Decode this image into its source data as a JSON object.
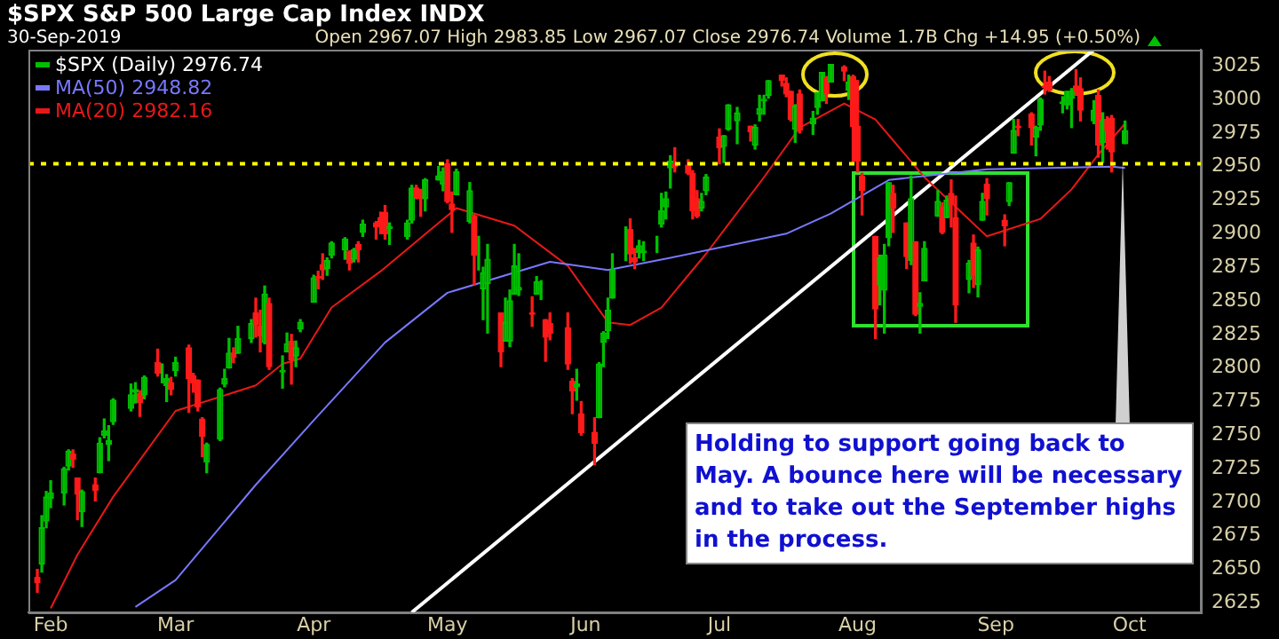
{
  "chart_data": {
    "type": "candlestick",
    "title": "$SPX S&P 500 Large Cap Index INDX",
    "subtitle": "30-Sep-2019",
    "annotations": [
      "Open 2967.07 High 2983.85 Low 2967.07 Close 2976.74 Volume 1.7B Chg +14.95 (+0.50%)",
      "Holding to support going back to May. A bounce here will be necessary and to take out the September highs in the process."
    ],
    "xlim": [
      "2019-01-27",
      "2019-10-17"
    ],
    "xticks": [
      {
        "value": "2019-02-01",
        "label": "Feb"
      },
      {
        "value": "2019-03-01",
        "label": "Mar"
      },
      {
        "value": "2019-04-01",
        "label": "Apr"
      },
      {
        "value": "2019-05-01",
        "label": "May"
      },
      {
        "value": "2019-06-01",
        "label": "Jun"
      },
      {
        "value": "2019-07-01",
        "label": "Jul"
      },
      {
        "value": "2019-08-01",
        "label": "Aug"
      },
      {
        "value": "2019-09-01",
        "label": "Sep"
      },
      {
        "value": "2019-10-01",
        "label": "Oct"
      }
    ],
    "ylim": [
      2618,
      3037
    ],
    "yticks": [
      2625,
      2650,
      2675,
      2700,
      2725,
      2750,
      2775,
      2800,
      2825,
      2850,
      2875,
      2900,
      2925,
      2950,
      2975,
      3000,
      3025
    ],
    "grid": false,
    "legend": "top left",
    "ref_lines": [
      {
        "axis": "y",
        "value": 2952,
        "color": "#ffff00",
        "line_style": "dotted"
      }
    ],
    "series": [
      {
        "name": "$SPX (Daily) 2976.74",
        "color": "#00c000",
        "colors": [
          "#ff1a1a",
          "#00c000",
          "#00c000",
          "#00c000",
          "#00c000",
          "#00c000",
          "#ff1a1a",
          "#ff1a1a",
          "#00c000",
          "#ff1a1a",
          "#00c000",
          "#00c000",
          "#00c000",
          "#00c000",
          "#00c000",
          "#00c000",
          "#ff1a1a",
          "#00c000",
          "#ff1a1a",
          "#00c000",
          "#00c000",
          "#ff1a1a",
          "#00c000",
          "#ff1a1a",
          "#ff1a1a",
          "#ff1a1a",
          "#ff1a1a",
          "#00c000",
          "#00c000",
          "#00c000",
          "#00c000",
          "#ff1a1a",
          "#00c000",
          "#00c000",
          "#ff1a1a",
          "#ff1a1a",
          "#00c000",
          "#ff1a1a",
          "#00c000",
          "#00c000",
          "#ff1a1a",
          "#00c000",
          "#00c000",
          "#00c000",
          "#ff1a1a",
          "#ff1a1a",
          "#00c000",
          "#00c000",
          "#00c000",
          "#ff1a1a",
          "#00c000",
          "#ff1a1a",
          "#00c000",
          "#ff1a1a",
          "#ff1a1a",
          "#ff1a1a",
          "#00c000",
          "#00c000",
          "#00c000",
          "#ff1a1a",
          "#ff1a1a",
          "#00c000",
          "#00c000",
          "#00c000",
          "#ff1a1a",
          "#ff1a1a",
          "#00c000",
          "#00c000",
          "#ff1a1a",
          "#00c000",
          "#00c000",
          "#00c000",
          "#ff1a1a",
          "#00c000",
          "#00c000",
          "#00c000",
          "#00c000",
          "#ff1a1a",
          "#00c000",
          "#00c000",
          "#ff1a1a",
          "#ff1a1a",
          "#ff1a1a",
          "#ff1a1a",
          "#00c000",
          "#ff1a1a",
          "#ff1a1a",
          "#00c000",
          "#00c000",
          "#00c000",
          "#00c000",
          "#00c000",
          "#ff1a1a",
          "#ff1a1a",
          "#00c000",
          "#00c000",
          "#00c000",
          "#00c000",
          "#00c000",
          "#00c000",
          "#ff1a1a",
          "#ff1a1a",
          "#ff1a1a",
          "#ff1a1a",
          "#00c000",
          "#00c000",
          "#ff1a1a",
          "#00c000",
          "#00c000",
          "#00c000",
          "#ff1a1a",
          "#00c000",
          "#00c000",
          "#00c000",
          "#00c000",
          "#ff1a1a",
          "#ff1a1a",
          "#ff1a1a",
          "#00c000",
          "#ff1a1a",
          "#00c000",
          "#00c000",
          "#00c000",
          "#ff1a1a",
          "#00c000",
          "#ff1a1a",
          "#00c000",
          "#ff1a1a",
          "#ff1a1a",
          "#ff1a1a",
          "#ff1a1a",
          "#00c000",
          "#00c000",
          "#00c000",
          "#ff1a1a",
          "#ff1a1a",
          "#00c000",
          "#ff1a1a",
          "#00c000",
          "#00c000",
          "#00c000",
          "#ff1a1a",
          "#00c000",
          "#ff1a1a",
          "#ff1a1a",
          "#00c000",
          "#ff1a1a",
          "#00c000",
          "#00c000",
          "#ff1a1a",
          "#ff1a1a",
          "#00c000",
          "#00c000",
          "#ff1a1a",
          "#ff1a1a",
          "#00c000",
          "#00c000",
          "#ff1a1a",
          "#ff1a1a",
          "#00c000",
          "#00c000",
          "#00c000",
          "#ff1a1a",
          "#ff1a1a",
          "#00c000",
          "#ff1a1a",
          "#00c000",
          "#ff1a1a",
          "#ff1a1a",
          "#00c000"
        ],
        "x": [
          "2019-01-29",
          "2019-01-30",
          "2019-01-31",
          "2019-02-01",
          "2019-02-04",
          "2019-02-05",
          "2019-02-06",
          "2019-02-07",
          "2019-02-08",
          "2019-02-11",
          "2019-02-12",
          "2019-02-13",
          "2019-02-14",
          "2019-02-15",
          "2019-02-19",
          "2019-02-20",
          "2019-02-21",
          "2019-02-22",
          "2019-02-25",
          "2019-02-26",
          "2019-02-27",
          "2019-02-28",
          "2019-03-01",
          "2019-03-04",
          "2019-03-05",
          "2019-03-06",
          "2019-03-07",
          "2019-03-08",
          "2019-03-11",
          "2019-03-12",
          "2019-03-13",
          "2019-03-14",
          "2019-03-15",
          "2019-03-18",
          "2019-03-19",
          "2019-03-20",
          "2019-03-21",
          "2019-03-22",
          "2019-03-25",
          "2019-03-26",
          "2019-03-27",
          "2019-03-28",
          "2019-03-29",
          "2019-04-01",
          "2019-04-02",
          "2019-04-03",
          "2019-04-04",
          "2019-04-05",
          "2019-04-08",
          "2019-04-09",
          "2019-04-10",
          "2019-04-11",
          "2019-04-12",
          "2019-04-15",
          "2019-04-16",
          "2019-04-17",
          "2019-04-18",
          "2019-04-22",
          "2019-04-23",
          "2019-04-24",
          "2019-04-25",
          "2019-04-26",
          "2019-04-29",
          "2019-04-30",
          "2019-05-01",
          "2019-05-02",
          "2019-05-03",
          "2019-05-06",
          "2019-05-07",
          "2019-05-08",
          "2019-05-09",
          "2019-05-10",
          "2019-05-13",
          "2019-05-14",
          "2019-05-15",
          "2019-05-16",
          "2019-05-17",
          "2019-05-20",
          "2019-05-21",
          "2019-05-22",
          "2019-05-23",
          "2019-05-24",
          "2019-05-28",
          "2019-05-29",
          "2019-05-30",
          "2019-05-31",
          "2019-06-03",
          "2019-06-04",
          "2019-06-05",
          "2019-06-06",
          "2019-06-07",
          "2019-06-10",
          "2019-06-11",
          "2019-06-12",
          "2019-06-13",
          "2019-06-14",
          "2019-06-17",
          "2019-06-18",
          "2019-06-19",
          "2019-06-20",
          "2019-06-21",
          "2019-06-24",
          "2019-06-25",
          "2019-06-26",
          "2019-06-27",
          "2019-06-28",
          "2019-07-01",
          "2019-07-02",
          "2019-07-03",
          "2019-07-05",
          "2019-07-08",
          "2019-07-09",
          "2019-07-10",
          "2019-07-11",
          "2019-07-12",
          "2019-07-15",
          "2019-07-16",
          "2019-07-17",
          "2019-07-18",
          "2019-07-19",
          "2019-07-22",
          "2019-07-23",
          "2019-07-24",
          "2019-07-25",
          "2019-07-26",
          "2019-07-29",
          "2019-07-30",
          "2019-07-31",
          "2019-08-01",
          "2019-08-02",
          "2019-08-05",
          "2019-08-06",
          "2019-08-07",
          "2019-08-08",
          "2019-08-09",
          "2019-08-12",
          "2019-08-13",
          "2019-08-14",
          "2019-08-15",
          "2019-08-16",
          "2019-08-19",
          "2019-08-20",
          "2019-08-21",
          "2019-08-22",
          "2019-08-23",
          "2019-08-26",
          "2019-08-27",
          "2019-08-28",
          "2019-08-29",
          "2019-08-30",
          "2019-09-03",
          "2019-09-04",
          "2019-09-05",
          "2019-09-06",
          "2019-09-09",
          "2019-09-10",
          "2019-09-11",
          "2019-09-12",
          "2019-09-13",
          "2019-09-16",
          "2019-09-17",
          "2019-09-18",
          "2019-09-19",
          "2019-09-20",
          "2019-09-23",
          "2019-09-24",
          "2019-09-25",
          "2019-09-26",
          "2019-09-27",
          "2019-09-30"
        ],
        "ohlc": [
          [
            2644,
            2650,
            2633,
            2640
          ],
          [
            2654,
            2690,
            2648,
            2681
          ],
          [
            2686,
            2708,
            2681,
            2704
          ],
          [
            2703,
            2716,
            2696,
            2707
          ],
          [
            2707,
            2726,
            2698,
            2725
          ],
          [
            2727,
            2739,
            2724,
            2738
          ],
          [
            2736,
            2739,
            2726,
            2732
          ],
          [
            2718,
            2718,
            2687,
            2706
          ],
          [
            2693,
            2709,
            2682,
            2708
          ],
          [
            2713,
            2718,
            2701,
            2709
          ],
          [
            2722,
            2748,
            2722,
            2744
          ],
          [
            2750,
            2762,
            2748,
            2753
          ],
          [
            2743,
            2757,
            2731,
            2746
          ],
          [
            2760,
            2777,
            2758,
            2776
          ],
          [
            2770,
            2788,
            2768,
            2780
          ],
          [
            2782,
            2789,
            2774,
            2784
          ],
          [
            2781,
            2783,
            2764,
            2774
          ],
          [
            2780,
            2794,
            2777,
            2793
          ],
          [
            2804,
            2814,
            2794,
            2796
          ],
          [
            2793,
            2803,
            2789,
            2793
          ],
          [
            2787,
            2795,
            2775,
            2792
          ],
          [
            2789,
            2793,
            2780,
            2784
          ],
          [
            2798,
            2808,
            2794,
            2804
          ],
          [
            2815,
            2817,
            2767,
            2792
          ],
          [
            2794,
            2796,
            2782,
            2789
          ],
          [
            2791,
            2791,
            2768,
            2771
          ],
          [
            2762,
            2763,
            2734,
            2749
          ],
          [
            2730,
            2744,
            2722,
            2743
          ],
          [
            2747,
            2785,
            2746,
            2784
          ],
          [
            2788,
            2799,
            2786,
            2792
          ],
          [
            2800,
            2822,
            2800,
            2811
          ],
          [
            2811,
            2815,
            2804,
            2808
          ],
          [
            2811,
            2831,
            2811,
            2822
          ],
          [
            2822,
            2836,
            2819,
            2833
          ],
          [
            2841,
            2852,
            2823,
            2832
          ],
          [
            2831,
            2843,
            2812,
            2824
          ],
          [
            2819,
            2861,
            2818,
            2855
          ],
          [
            2848,
            2852,
            2799,
            2801
          ],
          [
            2797,
            2809,
            2785,
            2798
          ],
          [
            2812,
            2826,
            2812,
            2818
          ],
          [
            2820,
            2825,
            2788,
            2806
          ],
          [
            2809,
            2820,
            2801,
            2815
          ],
          [
            2829,
            2836,
            2827,
            2834
          ],
          [
            2849,
            2869,
            2849,
            2867
          ],
          [
            2868,
            2872,
            2859,
            2867
          ],
          [
            2877,
            2885,
            2866,
            2873
          ],
          [
            2874,
            2882,
            2869,
            2880
          ],
          [
            2884,
            2894,
            2882,
            2893
          ],
          [
            2888,
            2897,
            2881,
            2896
          ],
          [
            2887,
            2887,
            2873,
            2878
          ],
          [
            2881,
            2889,
            2879,
            2888
          ],
          [
            2892,
            2894,
            2879,
            2888
          ],
          [
            2901,
            2910,
            2898,
            2907
          ],
          [
            2908,
            2909,
            2896,
            2905
          ],
          [
            2912,
            2916,
            2900,
            2907
          ],
          [
            2916,
            2921,
            2896,
            2900
          ],
          [
            2904,
            2908,
            2892,
            2905
          ],
          [
            2898,
            2910,
            2896,
            2908
          ],
          [
            2910,
            2936,
            2908,
            2934
          ],
          [
            2934,
            2936,
            2926,
            2927
          ],
          [
            2928,
            2933,
            2913,
            2926
          ],
          [
            2926,
            2941,
            2917,
            2940
          ],
          [
            2940,
            2950,
            2940,
            2943
          ],
          [
            2937,
            2949,
            2932,
            2946
          ],
          [
            2952,
            2955,
            2923,
            2924
          ],
          [
            2922,
            2931,
            2901,
            2918
          ],
          [
            2929,
            2948,
            2929,
            2946
          ],
          [
            2909,
            2938,
            2908,
            2932
          ],
          [
            2913,
            2914,
            2862,
            2884
          ],
          [
            2880,
            2898,
            2873,
            2880
          ],
          [
            2859,
            2875,
            2836,
            2871
          ],
          [
            2863,
            2892,
            2826,
            2881
          ],
          [
            2841,
            2841,
            2801,
            2812
          ],
          [
            2820,
            2852,
            2820,
            2834
          ],
          [
            2820,
            2858,
            2816,
            2850
          ],
          [
            2855,
            2892,
            2855,
            2876
          ],
          [
            2858,
            2885,
            2854,
            2860
          ],
          [
            2841,
            2853,
            2831,
            2840
          ],
          [
            2855,
            2868,
            2855,
            2864
          ],
          [
            2856,
            2865,
            2851,
            2856
          ],
          [
            2836,
            2836,
            2805,
            2823
          ],
          [
            2833,
            2841,
            2821,
            2826
          ],
          [
            2830,
            2841,
            2799,
            2803
          ],
          [
            2790,
            2792,
            2766,
            2783
          ],
          [
            2786,
            2799,
            2776,
            2788
          ],
          [
            2766,
            2775,
            2750,
            2752
          ],
          [
            2752,
            2763,
            2728,
            2744
          ],
          [
            2763,
            2804,
            2763,
            2803
          ],
          [
            2819,
            2827,
            2801,
            2826
          ],
          [
            2828,
            2852,
            2822,
            2843
          ],
          [
            2852,
            2885,
            2852,
            2873
          ],
          [
            2886,
            2905,
            2880,
            2886
          ],
          [
            2903,
            2911,
            2878,
            2885
          ],
          [
            2882,
            2889,
            2874,
            2879
          ],
          [
            2886,
            2895,
            2882,
            2891
          ],
          [
            2886,
            2894,
            2880,
            2887
          ],
          [
            2889,
            2898,
            2886,
            2889
          ],
          [
            2907,
            2930,
            2905,
            2917
          ],
          [
            2920,
            2931,
            2911,
            2926
          ],
          [
            2949,
            2958,
            2934,
            2954
          ],
          [
            2952,
            2964,
            2946,
            2950
          ],
          [
            2951,
            2955,
            2944,
            2945
          ],
          [
            2945,
            2947,
            2911,
            2917
          ],
          [
            2926,
            2932,
            2912,
            2913
          ],
          [
            2919,
            2930,
            2917,
            2924
          ],
          [
            2932,
            2944,
            2929,
            2942
          ],
          [
            2972,
            2978,
            2952,
            2964
          ],
          [
            2965,
            2973,
            2953,
            2973
          ],
          [
            2978,
            2996,
            2977,
            2996
          ],
          [
            2984,
            2994,
            2967,
            2990
          ],
          [
            2980,
            2980,
            2969,
            2976
          ],
          [
            2966,
            2981,
            2963,
            2979
          ],
          [
            2989,
            3003,
            2984,
            2993
          ],
          [
            2999,
            3003,
            2989,
            3000
          ],
          [
            3003,
            3014,
            3001,
            3014
          ],
          [
            3018,
            3018,
            3010,
            3014
          ],
          [
            3012,
            3016,
            3002,
            3004
          ],
          [
            3006,
            3006,
            2984,
            2985
          ],
          [
            2978,
            2996,
            2968,
            2995
          ],
          [
            3004,
            3007,
            2975,
            2977
          ],
          [
            2982,
            2991,
            2974,
            2986
          ],
          [
            2994,
            3005,
            2989,
            3005
          ],
          [
            2999,
            3020,
            2999,
            3020
          ],
          [
            3016,
            3017,
            2997,
            3004
          ],
          [
            3013,
            3026,
            3013,
            3026
          ],
          [
            3024,
            3025,
            3014,
            3021
          ],
          [
            3007,
            3018,
            3000,
            3013
          ],
          [
            3017,
            3018,
            2953,
            2980
          ],
          [
            2980,
            3014,
            2946,
            2954
          ],
          [
            2943,
            2945,
            2914,
            2932
          ],
          [
            2898,
            2898,
            2822,
            2844
          ],
          [
            2862,
            2884,
            2847,
            2882
          ],
          [
            2858,
            2892,
            2826,
            2884
          ],
          [
            2897,
            2938,
            2891,
            2938
          ],
          [
            2930,
            2936,
            2901,
            2919
          ],
          [
            2908,
            2908,
            2874,
            2883
          ],
          [
            2880,
            2943,
            2877,
            2926
          ],
          [
            2894,
            2894,
            2839,
            2840
          ],
          [
            2846,
            2856,
            2826,
            2848
          ],
          [
            2865,
            2894,
            2865,
            2889
          ],
          [
            2913,
            2932,
            2913,
            2924
          ],
          [
            2920,
            2923,
            2900,
            2901
          ],
          [
            2912,
            2928,
            2912,
            2925
          ],
          [
            2930,
            2940,
            2905,
            2922
          ],
          [
            2912,
            2928,
            2834,
            2847
          ],
          [
            2866,
            2880,
            2856,
            2878
          ],
          [
            2893,
            2899,
            2860,
            2869
          ],
          [
            2862,
            2890,
            2853,
            2888
          ],
          [
            2910,
            2930,
            2910,
            2924
          ],
          [
            2937,
            2941,
            2914,
            2926
          ],
          [
            2910,
            2914,
            2891,
            2906
          ],
          [
            2924,
            2938,
            2921,
            2938
          ],
          [
            2960,
            2985,
            2960,
            2977
          ],
          [
            2980,
            2985,
            2973,
            2979
          ],
          [
            2989,
            2990,
            2966,
            2979
          ],
          [
            2972,
            2980,
            2958,
            2979
          ],
          [
            2981,
            3001,
            2977,
            3000
          ],
          [
            3010,
            3021,
            3004,
            3009
          ],
          [
            3013,
            3017,
            3006,
            3007
          ],
          [
            2997,
            3002,
            2990,
            2998
          ],
          [
            2996,
            3006,
            2993,
            3006
          ],
          [
            3001,
            3008,
            2979,
            3006
          ],
          [
            3010,
            3022,
            3003,
            3006
          ],
          [
            3008,
            3016,
            2984,
            2992
          ],
          [
            2984,
            2999,
            2982,
            2992
          ],
          [
            3003,
            3007,
            2957,
            2966
          ],
          [
            2968,
            2990,
            2953,
            2984
          ],
          [
            2985,
            2987,
            2963,
            2977
          ],
          [
            2986,
            2988,
            2946,
            2961
          ],
          [
            2967.07,
            2983.85,
            2967.07,
            2976.74
          ]
        ]
      },
      {
        "name": "MA(50) 2948.82",
        "type": "line",
        "color": "#7878ff",
        "x": [
          "2019-02-20",
          "2019-03-01",
          "2019-03-19",
          "2019-04-01",
          "2019-04-17",
          "2019-05-01",
          "2019-05-24",
          "2019-06-06",
          "2019-06-20",
          "2019-07-16",
          "2019-07-26",
          "2019-08-08",
          "2019-08-30",
          "2019-09-27",
          "2019-09-30"
        ],
        "values": [
          2622,
          2642,
          2713,
          2761,
          2819,
          2856,
          2879,
          2873,
          2882,
          2900,
          2915,
          2940,
          2948,
          2950,
          2949
        ]
      },
      {
        "name": "MA(20) 2982.16",
        "type": "line",
        "color": "#e81818",
        "x": [
          "2019-02-01",
          "2019-02-07",
          "2019-02-15",
          "2019-03-01",
          "2019-03-19",
          "2019-03-25",
          "2019-03-29",
          "2019-04-05",
          "2019-04-16",
          "2019-05-03",
          "2019-05-16",
          "2019-05-28",
          "2019-06-06",
          "2019-06-11",
          "2019-06-18",
          "2019-06-28",
          "2019-07-11",
          "2019-07-19",
          "2019-07-29",
          "2019-08-05",
          "2019-08-16",
          "2019-08-30",
          "2019-09-11",
          "2019-09-18",
          "2019-09-24",
          "2019-09-30"
        ],
        "values": [
          2621,
          2661,
          2704,
          2768,
          2787,
          2803,
          2807,
          2845,
          2872,
          2919,
          2906,
          2876,
          2834,
          2832,
          2845,
          2885,
          2942,
          2979,
          2997,
          2985,
          2942,
          2898,
          2911,
          2933,
          2959,
          2982
        ]
      },
      {
        "type": "line",
        "color": "#ffffff",
        "x": [
          "2019-04-23",
          "2019-09-23"
        ],
        "values": [
          2618,
          3037
        ]
      }
    ]
  }
}
